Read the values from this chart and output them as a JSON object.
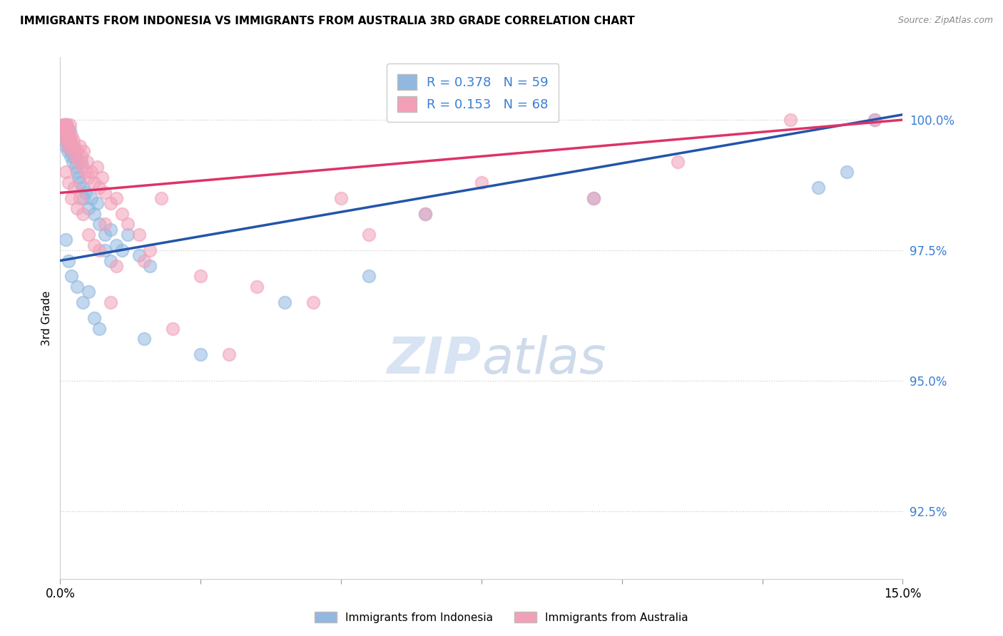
{
  "title": "IMMIGRANTS FROM INDONESIA VS IMMIGRANTS FROM AUSTRALIA 3RD GRADE CORRELATION CHART",
  "source": "Source: ZipAtlas.com",
  "ylabel": "3rd Grade",
  "ylabel_values": [
    92.5,
    95.0,
    97.5,
    100.0
  ],
  "xmin": 0.0,
  "xmax": 15.0,
  "ymin": 91.2,
  "ymax": 101.2,
  "legend_blue_r": "0.378",
  "legend_blue_n": "59",
  "legend_pink_r": "0.153",
  "legend_pink_n": "68",
  "legend_label_blue": "Immigrants from Indonesia",
  "legend_label_pink": "Immigrants from Australia",
  "blue_color": "#92b8e0",
  "pink_color": "#f2a0b8",
  "blue_line_color": "#2255aa",
  "pink_line_color": "#dd3366",
  "blue_line_x0": 0.0,
  "blue_line_y0": 97.3,
  "blue_line_x1": 15.0,
  "blue_line_y1": 100.1,
  "pink_line_x0": 0.0,
  "pink_line_y0": 98.6,
  "pink_line_x1": 15.0,
  "pink_line_y1": 100.0,
  "indo_x": [
    0.05,
    0.07,
    0.08,
    0.09,
    0.1,
    0.1,
    0.11,
    0.12,
    0.13,
    0.14,
    0.15,
    0.16,
    0.17,
    0.18,
    0.19,
    0.2,
    0.22,
    0.23,
    0.25,
    0.27,
    0.28,
    0.3,
    0.32,
    0.35,
    0.38,
    0.4,
    0.42,
    0.45,
    0.5,
    0.55,
    0.6,
    0.65,
    0.7,
    0.8,
    0.9,
    1.0,
    1.1,
    1.2,
    1.4,
    1.6,
    0.1,
    0.15,
    0.2,
    0.3,
    0.4,
    0.5,
    0.6,
    0.7,
    0.8,
    0.9,
    1.5,
    2.5,
    4.0,
    5.5,
    6.5,
    9.5,
    13.5,
    14.0,
    14.5
  ],
  "indo_y": [
    99.8,
    99.6,
    99.9,
    99.7,
    99.8,
    99.5,
    99.9,
    99.6,
    99.8,
    99.4,
    99.7,
    99.5,
    99.8,
    99.3,
    99.6,
    99.4,
    99.5,
    99.2,
    99.3,
    99.1,
    99.4,
    99.0,
    98.9,
    98.8,
    99.2,
    98.7,
    98.5,
    98.6,
    98.3,
    98.5,
    98.2,
    98.4,
    98.0,
    97.8,
    97.9,
    97.6,
    97.5,
    97.8,
    97.4,
    97.2,
    97.7,
    97.3,
    97.0,
    96.8,
    96.5,
    96.7,
    96.2,
    96.0,
    97.5,
    97.3,
    95.8,
    95.5,
    96.5,
    97.0,
    98.2,
    98.5,
    98.7,
    99.0,
    100.0
  ],
  "aus_x": [
    0.04,
    0.06,
    0.07,
    0.08,
    0.09,
    0.1,
    0.11,
    0.12,
    0.13,
    0.14,
    0.15,
    0.16,
    0.17,
    0.18,
    0.2,
    0.22,
    0.24,
    0.25,
    0.27,
    0.3,
    0.32,
    0.35,
    0.38,
    0.4,
    0.42,
    0.45,
    0.48,
    0.5,
    0.55,
    0.6,
    0.65,
    0.7,
    0.75,
    0.8,
    0.9,
    1.0,
    1.1,
    1.2,
    1.4,
    1.6,
    0.1,
    0.15,
    0.2,
    0.25,
    0.3,
    0.35,
    0.4,
    0.5,
    0.6,
    0.7,
    1.0,
    1.5,
    2.5,
    3.5,
    4.5,
    5.5,
    6.5,
    7.5,
    9.5,
    11.0,
    13.0,
    14.5,
    0.8,
    1.8,
    0.9,
    2.0,
    3.0,
    5.0
  ],
  "aus_y": [
    99.9,
    99.8,
    99.9,
    99.7,
    99.9,
    99.8,
    99.6,
    99.9,
    99.7,
    99.5,
    99.8,
    99.6,
    99.9,
    99.5,
    99.7,
    99.4,
    99.6,
    99.5,
    99.3,
    99.4,
    99.2,
    99.5,
    99.3,
    99.1,
    99.4,
    99.0,
    99.2,
    98.9,
    99.0,
    98.8,
    99.1,
    98.7,
    98.9,
    98.6,
    98.4,
    98.5,
    98.2,
    98.0,
    97.8,
    97.5,
    99.0,
    98.8,
    98.5,
    98.7,
    98.3,
    98.5,
    98.2,
    97.8,
    97.6,
    97.5,
    97.2,
    97.3,
    97.0,
    96.8,
    96.5,
    97.8,
    98.2,
    98.8,
    98.5,
    99.2,
    100.0,
    100.0,
    98.0,
    98.5,
    96.5,
    96.0,
    95.5,
    98.5
  ]
}
